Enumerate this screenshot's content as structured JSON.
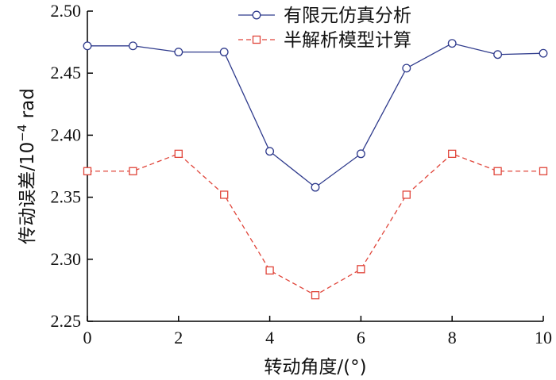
{
  "chart_data": {
    "type": "line",
    "x": [
      0,
      1,
      2,
      3,
      4,
      5,
      6,
      7,
      8,
      9,
      10
    ],
    "xlim": [
      0,
      10
    ],
    "ylim": [
      2.25,
      2.5
    ],
    "xticks": [
      0,
      2,
      4,
      6,
      8,
      10
    ],
    "xtick_labels": [
      "0",
      "2",
      "4",
      "6",
      "8",
      "10"
    ],
    "yticks": [
      2.25,
      2.3,
      2.35,
      2.4,
      2.45,
      2.5
    ],
    "ytick_labels": [
      "2.25",
      "2.30",
      "2.35",
      "2.40",
      "2.45",
      "2.50"
    ],
    "xlabel": "转动角度/(°)",
    "ylabel": "传动误差/10",
    "ylabel_exponent": "−4",
    "ylabel_unit": " rad",
    "grid": false,
    "legend_position": "top-right",
    "series": [
      {
        "name": "有限元仿真分析",
        "color": "#2e3a8c",
        "line_style": "solid",
        "marker": "circle",
        "values": [
          2.472,
          2.472,
          2.467,
          2.467,
          2.387,
          2.358,
          2.385,
          2.454,
          2.474,
          2.465,
          2.466
        ]
      },
      {
        "name": "半解析模型计算",
        "color": "#e0453a",
        "line_style": "dashed",
        "marker": "square",
        "values": [
          2.371,
          2.371,
          2.385,
          2.352,
          2.291,
          2.271,
          2.292,
          2.352,
          2.385,
          2.371,
          2.371
        ]
      }
    ]
  }
}
